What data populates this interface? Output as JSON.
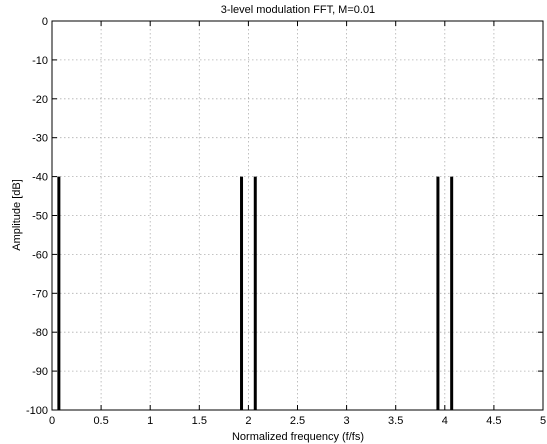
{
  "chart_data": {
    "type": "bar",
    "title": "3-level modulation FFT, M=0.01",
    "xlabel": "Normalized frequency (f/fs)",
    "ylabel": "Amplitude [dB]",
    "xlim": [
      0,
      5
    ],
    "ylim": [
      -100,
      0
    ],
    "grid": true,
    "x_ticks": [
      0,
      0.5,
      1,
      1.5,
      2,
      2.5,
      3,
      3.5,
      4,
      4.5,
      5
    ],
    "x_tick_labels": [
      "0",
      "0.5",
      "1",
      "1.5",
      "2",
      "2.5",
      "3",
      "3.5",
      "4",
      "4.5",
      "5"
    ],
    "y_ticks": [
      0,
      -10,
      -20,
      -30,
      -40,
      -50,
      -60,
      -70,
      -80,
      -90,
      -100
    ],
    "y_tick_labels": [
      "0",
      "-10",
      "-20",
      "-30",
      "-40",
      "-50",
      "-60",
      "-70",
      "-80",
      "-90",
      "-100"
    ],
    "baseline": -100,
    "color": "#000000",
    "spikes": [
      {
        "x": 0.07,
        "y": -40
      },
      {
        "x": 1.93,
        "y": -40
      },
      {
        "x": 2.07,
        "y": -40
      },
      {
        "x": 3.93,
        "y": -40
      },
      {
        "x": 4.07,
        "y": -40
      }
    ]
  }
}
